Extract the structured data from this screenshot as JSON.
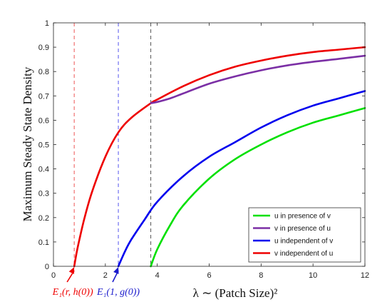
{
  "chart_data": {
    "type": "line",
    "title": "",
    "xlabel": "λ ∼ (Patch Size)²",
    "ylabel": "Maximum Steady State Density",
    "xlim": [
      0,
      12
    ],
    "ylim": [
      0,
      1
    ],
    "xticks": [
      0,
      2,
      4,
      6,
      8,
      10,
      12
    ],
    "xtick_labels": [
      "0",
      "2",
      "4",
      "6",
      "8",
      "10",
      "12"
    ],
    "yticks": [
      0,
      0.1,
      0.2,
      0.3,
      0.4,
      0.5,
      0.6,
      0.7,
      0.8,
      0.9,
      1
    ],
    "ytick_labels": [
      "0",
      "0.1",
      "0.2",
      "0.3",
      "0.4",
      "0.5",
      "0.6",
      "0.7",
      "0.8",
      "0.9",
      "1"
    ],
    "grid": false,
    "legend_position": "bottom-right",
    "series": [
      {
        "name": "u in presence of v",
        "color": "#00e000",
        "x": [
          3.75,
          4.0,
          4.5,
          5.0,
          6.0,
          7.0,
          8.0,
          9.0,
          10.0,
          11.0,
          12.0
        ],
        "y": [
          0.0,
          0.07,
          0.17,
          0.25,
          0.36,
          0.44,
          0.5,
          0.55,
          0.59,
          0.62,
          0.65
        ]
      },
      {
        "name": "v in presence of u",
        "color": "#7b2fa5",
        "x": [
          3.75,
          4.0,
          4.5,
          5.0,
          6.0,
          7.0,
          8.0,
          9.0,
          10.0,
          11.0,
          12.0
        ],
        "y": [
          0.67,
          0.675,
          0.69,
          0.71,
          0.75,
          0.78,
          0.805,
          0.825,
          0.84,
          0.852,
          0.865
        ]
      },
      {
        "name": "u independent of v",
        "color": "#0000ee",
        "x": [
          2.5,
          2.75,
          3.0,
          3.5,
          4.0,
          5.0,
          6.0,
          7.0,
          8.0,
          9.0,
          10.0,
          11.0,
          12.0
        ],
        "y": [
          0.0,
          0.06,
          0.11,
          0.19,
          0.265,
          0.37,
          0.45,
          0.51,
          0.57,
          0.62,
          0.66,
          0.69,
          0.72
        ]
      },
      {
        "name": "v independent of u",
        "color": "#ee0000",
        "x": [
          0.8,
          0.9,
          1.0,
          1.2,
          1.5,
          2.0,
          2.5,
          3.0,
          3.75,
          4.0,
          5.0,
          6.0,
          7.0,
          8.0,
          9.0,
          10.0,
          11.0,
          12.0
        ],
        "y": [
          0.0,
          0.06,
          0.11,
          0.2,
          0.31,
          0.45,
          0.55,
          0.61,
          0.67,
          0.685,
          0.74,
          0.785,
          0.82,
          0.845,
          0.865,
          0.88,
          0.89,
          0.9
        ]
      }
    ],
    "vlines": [
      {
        "x": 0.8,
        "color": "#ee5555"
      },
      {
        "x": 2.5,
        "color": "#5555ee"
      },
      {
        "x": 3.75,
        "color": "#555555"
      }
    ],
    "annotations": [
      {
        "text": "E₁(r, h(0))",
        "color": "#ee0000",
        "x": 0.8,
        "y": 0
      },
      {
        "text": "E₁(1, g(0))",
        "color": "#1a1acc",
        "x": 2.5,
        "y": 0
      }
    ]
  }
}
